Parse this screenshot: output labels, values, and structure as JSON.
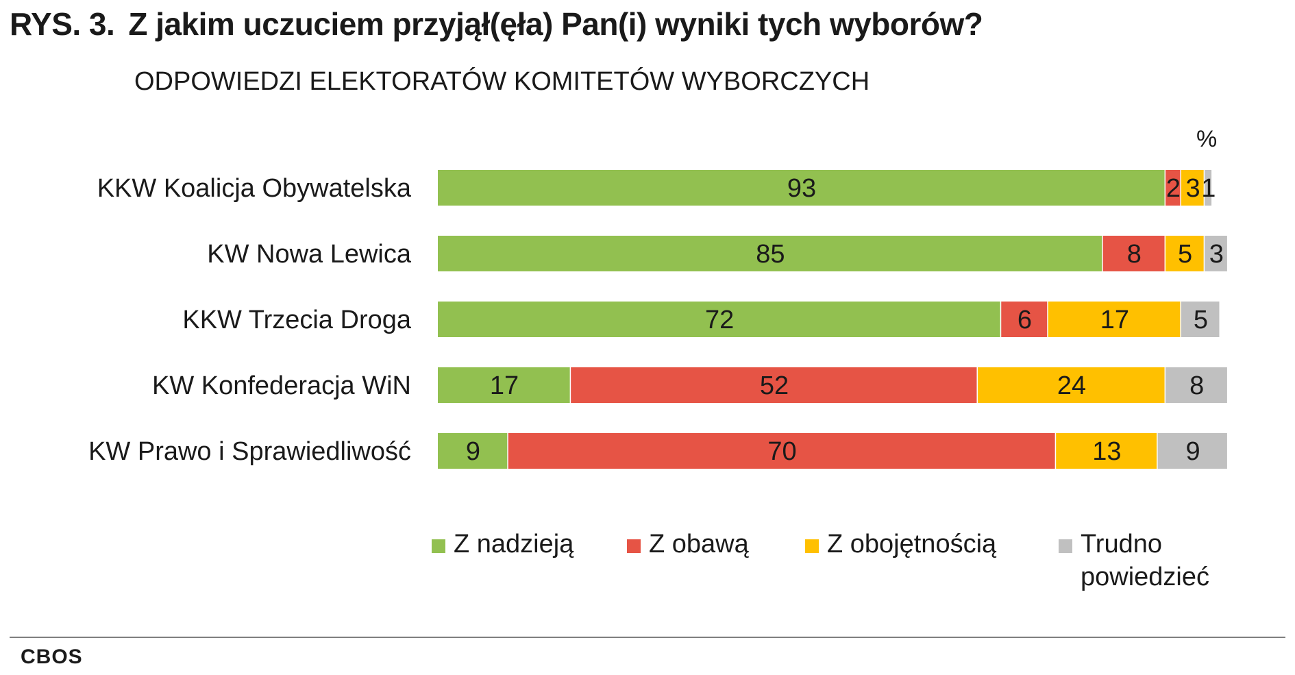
{
  "header": {
    "figure_number": "RYS. 3.",
    "title": "Z jakim uczuciem przyjął(ęła) Pan(i) wyniki tych wyborów?",
    "subtitle": "ODPOWIEDZI ELEKTORATÓW KOMITETÓW WYBORCZYCH",
    "unit": "%"
  },
  "footer": {
    "source": "CBOS"
  },
  "chart_data": {
    "type": "bar",
    "orientation": "horizontal",
    "stacked": true,
    "categories": [
      "KKW Koalicja Obywatelska",
      "KW Nowa Lewica",
      "KKW Trzecia Droga",
      "KW Konfederacja WiN",
      "KW Prawo i Sprawiedliwość"
    ],
    "series": [
      {
        "name": "Z nadzieją",
        "color": "#92c050",
        "values": [
          93,
          85,
          72,
          17,
          9
        ]
      },
      {
        "name": "Z obawą",
        "color": "#e65445",
        "values": [
          2,
          8,
          6,
          52,
          70
        ]
      },
      {
        "name": "Z obojętnością",
        "color": "#ffc000",
        "values": [
          3,
          5,
          17,
          24,
          13
        ]
      },
      {
        "name": "Trudno\npowiedzieć",
        "color": "#c0c0c0",
        "values": [
          1,
          3,
          5,
          8,
          9
        ]
      }
    ],
    "xlim": [
      0,
      100
    ],
    "grid": false,
    "legend_position": "bottom"
  }
}
